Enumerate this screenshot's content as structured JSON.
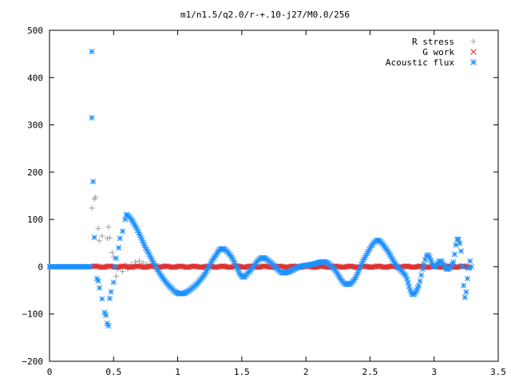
{
  "chart_data": {
    "type": "scatter",
    "title": "m1/n1.5/q2.0/r-+.10-j27/M0.0/256",
    "xlabel": "",
    "ylabel": "",
    "xlim": [
      0,
      3.5
    ],
    "ylim": [
      -200,
      500
    ],
    "x_ticks": [
      "0",
      "0.5",
      "1",
      "1.5",
      "2",
      "2.5",
      "3",
      "3.5"
    ],
    "y_ticks": [
      "500",
      "400",
      "300",
      "200",
      "100",
      "0",
      "−100",
      "−200"
    ],
    "grid": false,
    "legend_position": "top-right",
    "series": [
      {
        "name": "R stress",
        "marker": "plus",
        "color": "#a0a0a0",
        "points": [
          [
            0.33,
            124
          ],
          [
            0.35,
            143
          ],
          [
            0.36,
            147
          ],
          [
            0.38,
            81
          ],
          [
            0.39,
            55
          ],
          [
            0.41,
            65
          ],
          [
            0.44,
            0
          ],
          [
            0.45,
            60
          ],
          [
            0.46,
            84
          ],
          [
            0.47,
            61
          ],
          [
            0.49,
            30
          ],
          [
            0.5,
            20
          ],
          [
            0.52,
            -20
          ],
          [
            0.53,
            -5
          ],
          [
            0.55,
            0
          ],
          [
            0.57,
            -10
          ],
          [
            0.59,
            3
          ],
          [
            0.61,
            -5
          ],
          [
            0.64,
            5
          ],
          [
            0.67,
            10
          ],
          [
            0.7,
            12
          ],
          [
            0.73,
            8
          ],
          [
            0.76,
            5
          ],
          [
            0.8,
            3
          ],
          [
            0.85,
            2
          ],
          [
            0.9,
            1
          ],
          [
            1.0,
            0
          ],
          [
            1.2,
            0
          ],
          [
            1.5,
            0
          ],
          [
            2.0,
            0
          ],
          [
            2.5,
            0
          ],
          [
            3.0,
            0
          ],
          [
            3.2,
            2
          ]
        ]
      },
      {
        "name": "G work",
        "marker": "cross",
        "color": "#e03030",
        "points": [
          [
            0.33,
            0
          ],
          [
            0.36,
            3
          ],
          [
            0.4,
            5
          ],
          [
            0.43,
            2
          ],
          [
            0.47,
            4
          ],
          [
            0.5,
            1
          ],
          [
            0.55,
            0
          ],
          [
            0.6,
            2
          ],
          [
            0.7,
            1
          ],
          [
            0.8,
            0
          ],
          [
            1.0,
            0
          ],
          [
            1.5,
            0
          ],
          [
            2.0,
            0
          ],
          [
            2.5,
            0
          ],
          [
            3.0,
            0
          ],
          [
            3.28,
            0
          ]
        ]
      },
      {
        "name": "Acoustic flux",
        "marker": "star",
        "color": "#1e90ff",
        "points": [
          [
            0.33,
            455
          ],
          [
            0.33,
            315
          ],
          [
            0.34,
            180
          ],
          [
            0.35,
            62
          ],
          [
            0.37,
            -25
          ],
          [
            0.38,
            -30
          ],
          [
            0.39,
            -45
          ],
          [
            0.41,
            -68
          ],
          [
            0.43,
            -97
          ],
          [
            0.44,
            -103
          ],
          [
            0.45,
            -120
          ],
          [
            0.46,
            -125
          ],
          [
            0.47,
            -67
          ],
          [
            0.48,
            -53
          ],
          [
            0.5,
            -33
          ],
          [
            0.51,
            0
          ],
          [
            0.52,
            18
          ],
          [
            0.54,
            40
          ],
          [
            0.55,
            60
          ],
          [
            0.57,
            75
          ],
          [
            0.59,
            100
          ],
          [
            0.6,
            110
          ]
        ],
        "curve": [
          [
            0,
            0
          ],
          [
            0.3,
            0
          ],
          [
            0.6,
            110
          ],
          [
            0.66,
            90
          ],
          [
            0.75,
            40
          ],
          [
            0.85,
            -10
          ],
          [
            0.95,
            -45
          ],
          [
            1.02,
            -57
          ],
          [
            1.1,
            -48
          ],
          [
            1.2,
            -20
          ],
          [
            1.3,
            25
          ],
          [
            1.35,
            38
          ],
          [
            1.42,
            20
          ],
          [
            1.5,
            -20
          ],
          [
            1.55,
            -12
          ],
          [
            1.65,
            18
          ],
          [
            1.72,
            10
          ],
          [
            1.8,
            -10
          ],
          [
            1.85,
            -12
          ],
          [
            1.95,
            0
          ],
          [
            2.05,
            5
          ],
          [
            2.15,
            10
          ],
          [
            2.22,
            -5
          ],
          [
            2.3,
            -35
          ],
          [
            2.37,
            -30
          ],
          [
            2.45,
            15
          ],
          [
            2.55,
            55
          ],
          [
            2.62,
            40
          ],
          [
            2.7,
            5
          ],
          [
            2.78,
            -20
          ],
          [
            2.83,
            -58
          ],
          [
            2.88,
            -40
          ],
          [
            2.92,
            5
          ],
          [
            2.95,
            25
          ],
          [
            3.0,
            0
          ],
          [
            3.05,
            12
          ],
          [
            3.1,
            -5
          ],
          [
            3.15,
            10
          ],
          [
            3.18,
            58
          ],
          [
            3.21,
            33
          ],
          [
            3.24,
            -65
          ],
          [
            3.26,
            -25
          ],
          [
            3.28,
            12
          ],
          [
            3.29,
            0
          ]
        ]
      }
    ]
  }
}
